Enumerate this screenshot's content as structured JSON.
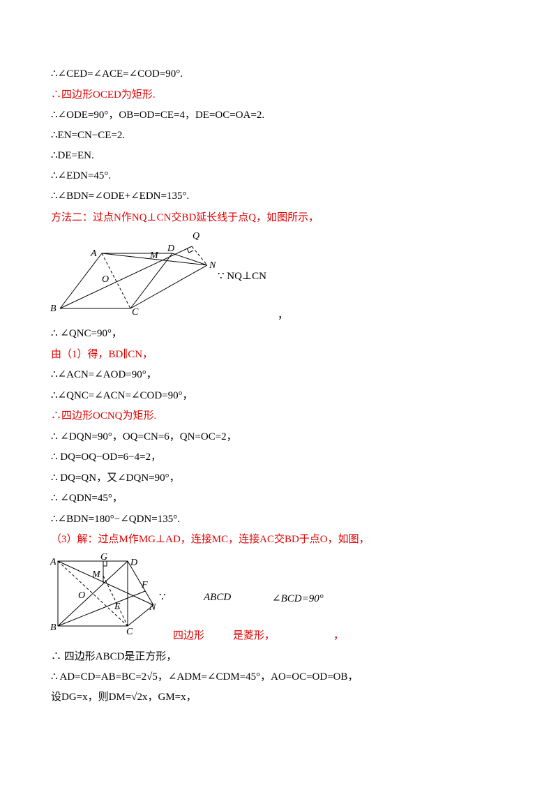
{
  "lines": [
    {
      "text": "∴∠CED=∠ACE=∠COD=90°.",
      "color": "black"
    },
    {
      "text": "∴四边形OCED为矩形.",
      "color": "red"
    },
    {
      "text": "∴∠ODE=90°，OB=OD=CE=4，DE=OC=OA=2.",
      "color": "black"
    },
    {
      "text": "∴EN=CN−CE=2.",
      "color": "black"
    },
    {
      "text": "∴DE=EN.",
      "color": "black"
    },
    {
      "text": "∴∠EDN=45°.",
      "color": "black"
    },
    {
      "text": "∴∠BDN=∠ODE+∠EDN=135°.",
      "color": "black"
    },
    {
      "text": "方法二：过点N作NQ⊥CN交BD延长线于点Q，如图所示，",
      "color": "red"
    },
    {
      "text": "∴ ∠QNC=90°，",
      "color": "black"
    },
    {
      "text": "由（1）得，BD∥CN，",
      "color": "red"
    },
    {
      "text": "∴∠ACN=∠AOD=90°，",
      "color": "black"
    },
    {
      "text": "∴∠QNC=∠ACN=∠COD=90°，",
      "color": "black"
    },
    {
      "text": "∴四边形OCNQ为矩形.",
      "color": "red"
    },
    {
      "text": "∴ ∠DQN=90°，OQ=CN=6，QN=OC=2，",
      "color": "black"
    },
    {
      "text": "∴ DQ=OQ−OD=6−4=2，",
      "color": "black"
    },
    {
      "text": "∴ DQ=QN，又∠DQN=90°，",
      "color": "black"
    },
    {
      "text": "∴ ∠QDN=45°，",
      "color": "black"
    },
    {
      "text": "∴∠BDN=180°−∠QDN=135°.",
      "color": "black"
    },
    {
      "text": "（3）解：过点M作MG⊥AD，连接MC，连接AC交BD于点O，如图，",
      "color": "red"
    },
    {
      "text": "∴ 四边形ABCD是正方形，",
      "color": "black"
    },
    {
      "text": "∴ AD=CD=AB=BC=2√5，∠ADM=∠CDM=45°，AO=OC=OD=OB，",
      "color": "black"
    },
    {
      "text": "设DG=x，则DM=√2x，GM=x，",
      "color": "black"
    }
  ],
  "figure1": {
    "labels": {
      "A": "A",
      "B": "B",
      "C": "C",
      "D": "D",
      "M": "M",
      "N": "N",
      "O": "O",
      "Q": "Q"
    },
    "note": "∵ NQ⊥CN",
    "comma": "，"
  },
  "figure2": {
    "labels": {
      "A": "A",
      "B": "B",
      "C": "C",
      "D": "D",
      "E": "E",
      "F": "F",
      "G": "G",
      "M": "M",
      "N": "N",
      "O": "O"
    },
    "because": "∵",
    "abcd": "ABCD",
    "angle": "∠BCD=90°",
    "quad_text": "四边形",
    "rhombus_text": "是菱形，",
    "comma": "，"
  }
}
